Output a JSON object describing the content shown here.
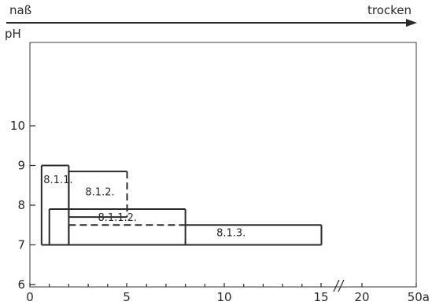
{
  "chart_data": {
    "type": "range-boxes",
    "top_left_label": "naß",
    "top_right_label": "trocken",
    "ylabel": "pH",
    "y_ticks": [
      "6",
      "7",
      "8",
      "9",
      "10"
    ],
    "x_ticks": [
      "0",
      "5",
      "10",
      "15",
      "20",
      "50a"
    ],
    "x_break_between": [
      "15",
      "20"
    ],
    "ylim": [
      6,
      10.2
    ],
    "boxes": [
      {
        "label": "8.1.1.",
        "x": [
          0.6,
          2.0
        ],
        "y": [
          7.0,
          9.0
        ],
        "dashed_right": false,
        "dashed_bottom": false
      },
      {
        "label": "8.1.2.",
        "x": [
          2.0,
          5.0
        ],
        "y": [
          7.7,
          8.85
        ],
        "dashed_right": true,
        "dashed_bottom": false
      },
      {
        "label": "8.1.1.2.",
        "x": [
          1.0,
          8.0
        ],
        "y": [
          7.0,
          7.9
        ],
        "dashed_right": false,
        "dashed_bottom": false
      },
      {
        "label": "8.1.3.",
        "x": [
          2.0,
          15.0
        ],
        "y": [
          7.0,
          7.5
        ],
        "dashed_right": false,
        "dashed_bottom": false,
        "dashed_top_from": 2.0,
        "dashed_top_to": 8.0
      }
    ]
  }
}
